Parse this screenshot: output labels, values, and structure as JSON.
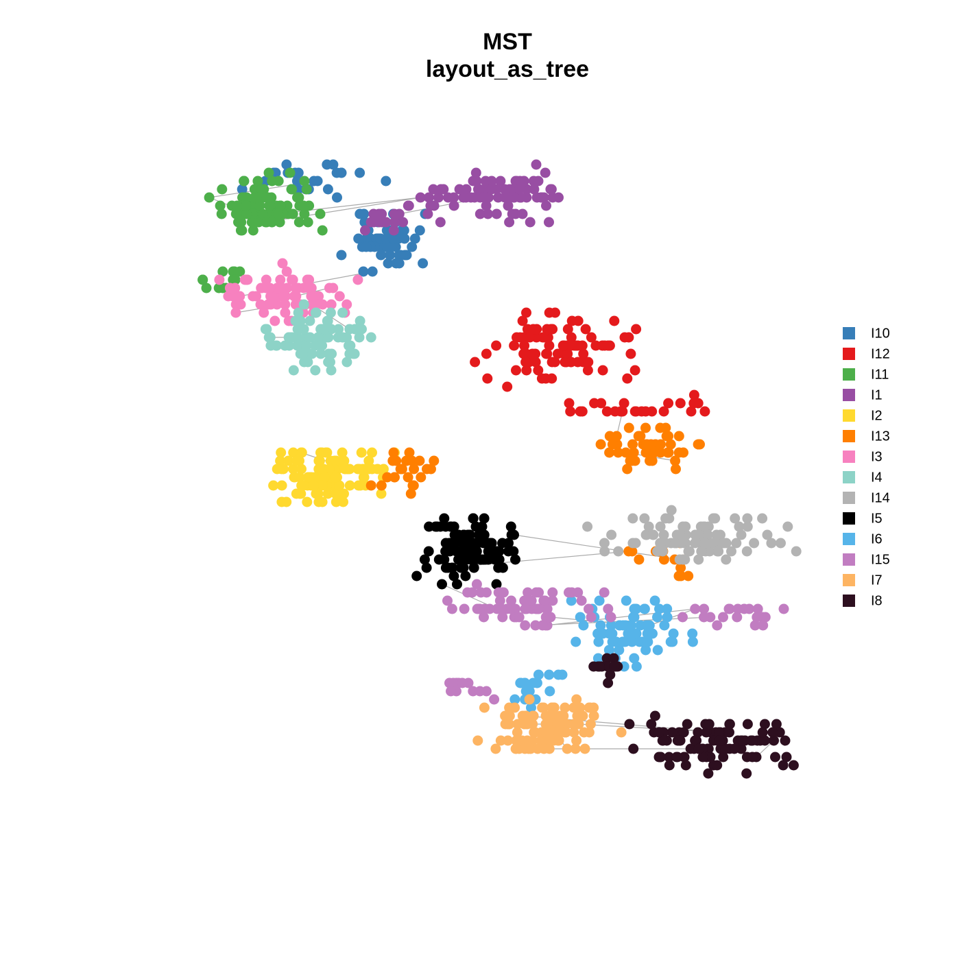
{
  "title": "MST",
  "subtitle": "layout_as_tree",
  "legend": {
    "items": [
      {
        "label": "I10",
        "color": "#377EB8"
      },
      {
        "label": "I12",
        "color": "#E41A1C"
      },
      {
        "label": "I11",
        "color": "#4DAF4A"
      },
      {
        "label": "I1",
        "color": "#984EA3"
      },
      {
        "label": "I2",
        "color": "#FFD92F"
      },
      {
        "label": "I13",
        "color": "#FF7F00"
      },
      {
        "label": "I3",
        "color": "#F781BF"
      },
      {
        "label": "I4",
        "color": "#8DD3C7"
      },
      {
        "label": "I14",
        "color": "#B3B3B3"
      },
      {
        "label": "I5",
        "color": "#000000"
      },
      {
        "label": "I6",
        "color": "#56B4E9"
      },
      {
        "label": "I15",
        "color": "#C17DC1"
      },
      {
        "label": "I7",
        "color": "#FDB462"
      },
      {
        "label": "I8",
        "color": "#2D0F1F"
      }
    ]
  }
}
